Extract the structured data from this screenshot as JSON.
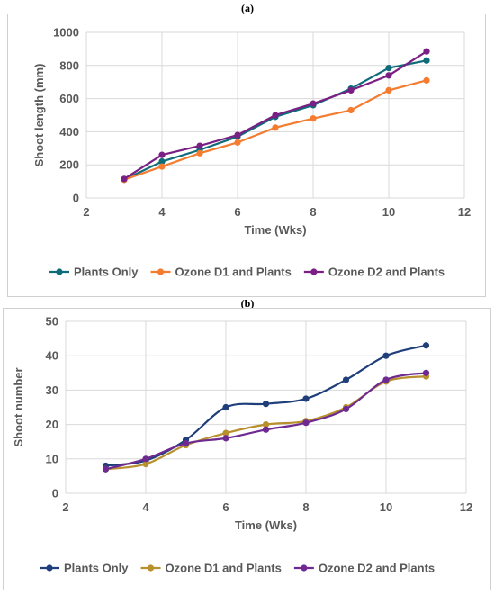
{
  "panels": {
    "a": {
      "label": "(a)"
    },
    "b": {
      "label": "(b)"
    }
  },
  "chart_data": [
    {
      "type": "line",
      "panel": "(a)",
      "title": "",
      "xlabel": "Time (Wks)",
      "ylabel": "Shoot length (mm)",
      "xlim": [
        2,
        12
      ],
      "ylim": [
        0,
        1000
      ],
      "xticks": [
        2,
        4,
        6,
        8,
        10,
        12
      ],
      "yticks": [
        0,
        200,
        400,
        600,
        800,
        1000
      ],
      "grid": true,
      "smooth": false,
      "legend_position": "bottom",
      "x": [
        3,
        4,
        5,
        6,
        7,
        8,
        9,
        10,
        11
      ],
      "series": [
        {
          "name": "Plants Only",
          "color": "#0e6b7a",
          "values": [
            110,
            220,
            290,
            370,
            490,
            560,
            660,
            785,
            830
          ]
        },
        {
          "name": "Ozone D1 and Plants",
          "color": "#f47c30",
          "values": [
            110,
            190,
            270,
            335,
            425,
            480,
            530,
            650,
            710
          ]
        },
        {
          "name": "Ozone D2 and Plants",
          "color": "#7a1f83",
          "values": [
            115,
            260,
            315,
            380,
            500,
            570,
            650,
            740,
            885
          ]
        }
      ]
    },
    {
      "type": "line",
      "panel": "(b)",
      "title": "",
      "xlabel": "Time (Wks)",
      "ylabel": "Shoot number",
      "xlim": [
        2,
        12
      ],
      "ylim": [
        0,
        50
      ],
      "xticks": [
        2,
        4,
        6,
        8,
        10,
        12
      ],
      "yticks": [
        0,
        10,
        20,
        30,
        40,
        50
      ],
      "grid": true,
      "smooth": true,
      "legend_position": "bottom",
      "x": [
        3,
        4,
        5,
        6,
        7,
        8,
        9,
        10,
        11
      ],
      "series": [
        {
          "name": "Plants Only",
          "color": "#1f3e7a",
          "values": [
            8,
            9.5,
            15.5,
            25,
            26,
            27.5,
            33,
            40,
            43
          ]
        },
        {
          "name": "Ozone D1 and Plants",
          "color": "#b8902e",
          "values": [
            7,
            8.5,
            14,
            17.5,
            20,
            21,
            25,
            32.5,
            34
          ]
        },
        {
          "name": "Ozone D2 and Plants",
          "color": "#6e2a91",
          "values": [
            7,
            10,
            14.5,
            16,
            18.5,
            20.5,
            24.5,
            33,
            35
          ]
        }
      ]
    }
  ]
}
